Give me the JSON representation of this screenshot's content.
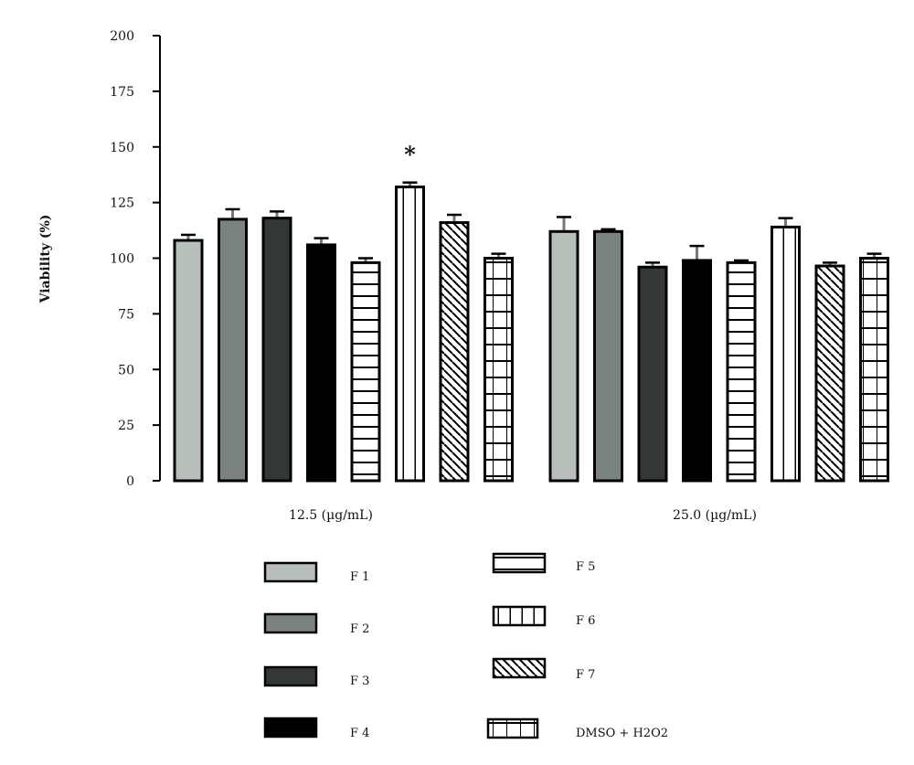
{
  "chart_data": {
    "type": "bar",
    "title": "",
    "xlabel": "",
    "ylabel": "Viability (%)",
    "ylim": [
      0,
      200
    ],
    "yticks": [
      0,
      25,
      50,
      75,
      100,
      125,
      150,
      175,
      200
    ],
    "grid": false,
    "legend_placement": "bottom",
    "categories": [
      "12.5 (µg/mL)",
      "25.0 (µg/mL)"
    ],
    "series": [
      {
        "name": "F 1",
        "values": [
          108,
          112
        ],
        "errors": [
          2.5,
          6.5
        ],
        "fill": "#b8bfbb",
        "pattern": "solid"
      },
      {
        "name": "F 2",
        "values": [
          117.5,
          112
        ],
        "errors": [
          4.5,
          1
        ],
        "fill": "#7a837f",
        "pattern": "solid"
      },
      {
        "name": "F 3",
        "values": [
          118,
          96
        ],
        "errors": [
          3,
          2
        ],
        "fill": "#333837",
        "pattern": "solid"
      },
      {
        "name": "F 4",
        "values": [
          106,
          99
        ],
        "errors": [
          3,
          6.5
        ],
        "fill": "#000000",
        "pattern": "solid"
      },
      {
        "name": "F 5",
        "values": [
          98,
          98
        ],
        "errors": [
          2,
          1
        ],
        "fill": "#ffffff",
        "pattern": "horizontal"
      },
      {
        "name": "F 6",
        "values": [
          132,
          114
        ],
        "errors": [
          2,
          4
        ],
        "fill": "#ffffff",
        "pattern": "vertical"
      },
      {
        "name": "F 7",
        "values": [
          116,
          96.5
        ],
        "errors": [
          3.5,
          1.5
        ],
        "fill": "#ffffff",
        "pattern": "diagonal"
      },
      {
        "name": "DMSO + H2O2",
        "values": [
          100,
          100
        ],
        "errors": [
          2,
          2
        ],
        "fill": "#ffffff",
        "pattern": "grid"
      }
    ],
    "annotations": [
      {
        "text": "*",
        "series": "F 6",
        "category": "12.5 (µg/mL)"
      }
    ]
  }
}
